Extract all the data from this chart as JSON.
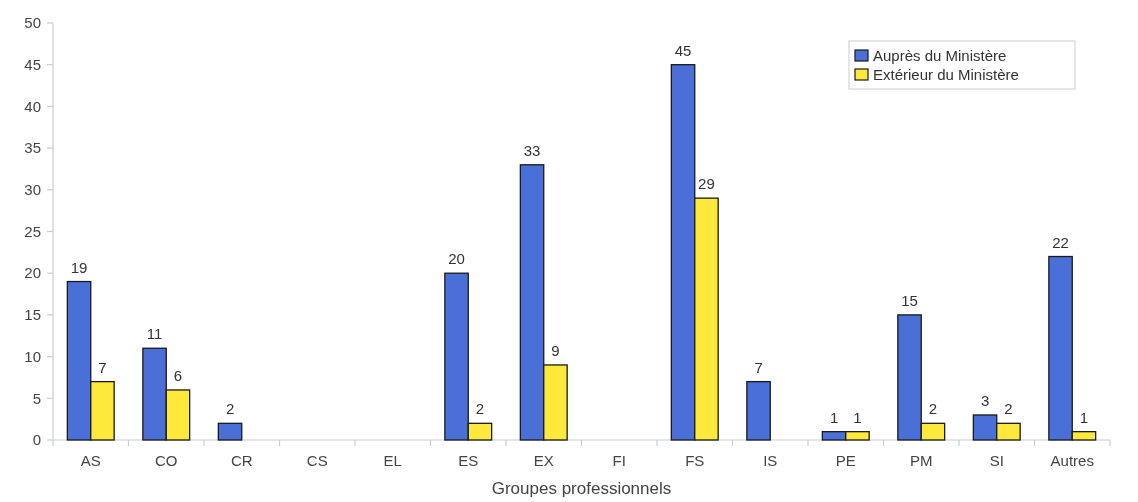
{
  "chart_data": {
    "type": "bar",
    "xlabel": "Groupes professionnels",
    "categories": [
      "AS",
      "CO",
      "CR",
      "CS",
      "EL",
      "ES",
      "EX",
      "FI",
      "FS",
      "IS",
      "PE",
      "PM",
      "SI",
      "Autres"
    ],
    "series": [
      {
        "name": "Auprès du Ministère",
        "color": "#4a6fd6",
        "values": [
          19,
          11,
          2,
          null,
          null,
          20,
          33,
          null,
          45,
          7,
          1,
          15,
          3,
          22
        ]
      },
      {
        "name": "Extérieur du Ministère",
        "color": "#fde83c",
        "values": [
          7,
          6,
          null,
          null,
          null,
          2,
          9,
          null,
          29,
          null,
          1,
          2,
          2,
          1
        ]
      }
    ],
    "ylim": [
      0,
      50
    ],
    "yticks": [
      0,
      5,
      10,
      15,
      20,
      25,
      30,
      35,
      40,
      45,
      50
    ],
    "data_labels": true,
    "legend": "top right"
  }
}
